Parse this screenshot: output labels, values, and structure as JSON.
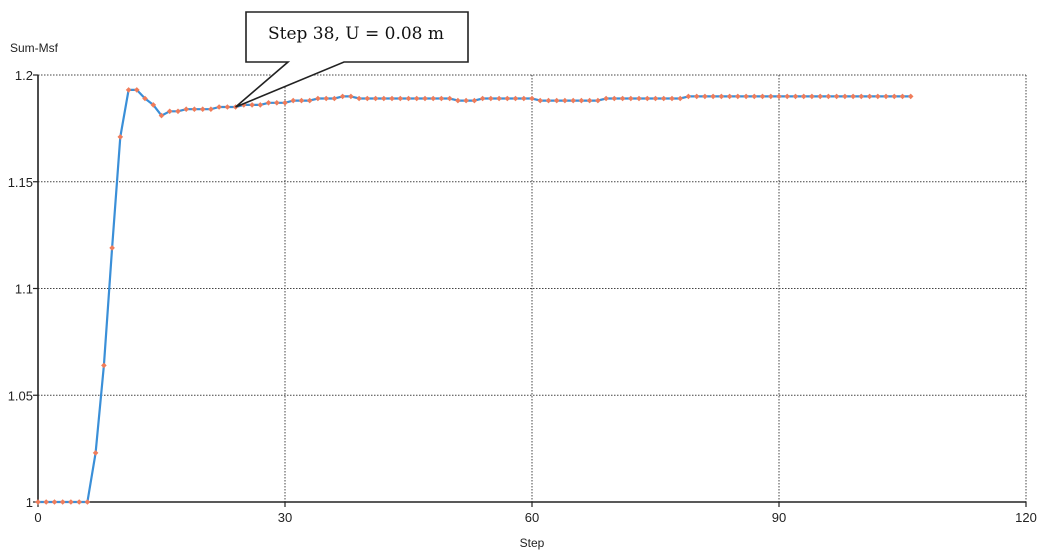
{
  "chart_data": {
    "type": "line",
    "title": "",
    "xlabel": "Step",
    "ylabel": "Sum-Msf",
    "xlim": [
      0,
      120
    ],
    "ylim": [
      1,
      1.2
    ],
    "x_ticks": [
      {
        "value": 0,
        "label": "0"
      },
      {
        "value": 30,
        "label": "30"
      },
      {
        "value": 60,
        "label": "60"
      },
      {
        "value": 90,
        "label": "90"
      },
      {
        "value": 120,
        "label": "120"
      }
    ],
    "y_ticks": [
      {
        "value": 1,
        "label": "1"
      },
      {
        "value": 1.05,
        "label": "1.05"
      },
      {
        "value": 1.1,
        "label": "1.1"
      },
      {
        "value": 1.15,
        "label": "1.15"
      },
      {
        "value": 1.2,
        "label": "1.2"
      }
    ],
    "grid": true,
    "line_color": "#3a8fd8",
    "marker_color": "#f07c5a",
    "series": [
      {
        "x": [
          0,
          1,
          2,
          3,
          4,
          5,
          6,
          7,
          8,
          9,
          10,
          11,
          12,
          13,
          14,
          15,
          16,
          17,
          18,
          19,
          20,
          21,
          22,
          23,
          24,
          25,
          26,
          27,
          28,
          29,
          30,
          31,
          32,
          33,
          34,
          35,
          36,
          37,
          38,
          39,
          40,
          41,
          42,
          43,
          44,
          45,
          46,
          47,
          48,
          49,
          50,
          51,
          52,
          53,
          54,
          55,
          56,
          57,
          58,
          59,
          60,
          61,
          62,
          63,
          64,
          65,
          66,
          67,
          68,
          69,
          70,
          71,
          72,
          73,
          74,
          75,
          76,
          77,
          78,
          79,
          80,
          81,
          82,
          83,
          84,
          85,
          86,
          87,
          88,
          89,
          90,
          91,
          92,
          93,
          94,
          95,
          96,
          97,
          98,
          99,
          100,
          101,
          102,
          103,
          104,
          105,
          106
        ],
        "y": [
          1.0,
          1.0,
          1.0,
          1.0,
          1.0,
          1.0,
          1.0,
          1.023,
          1.064,
          1.119,
          1.171,
          1.193,
          1.193,
          1.189,
          1.186,
          1.181,
          1.183,
          1.183,
          1.184,
          1.184,
          1.184,
          1.184,
          1.185,
          1.185,
          1.185,
          1.186,
          1.186,
          1.186,
          1.187,
          1.187,
          1.187,
          1.188,
          1.188,
          1.188,
          1.189,
          1.189,
          1.189,
          1.19,
          1.19,
          1.189,
          1.189,
          1.189,
          1.189,
          1.189,
          1.189,
          1.189,
          1.189,
          1.189,
          1.189,
          1.189,
          1.189,
          1.188,
          1.188,
          1.188,
          1.189,
          1.189,
          1.189,
          1.189,
          1.189,
          1.189,
          1.189,
          1.188,
          1.188,
          1.188,
          1.188,
          1.188,
          1.188,
          1.188,
          1.188,
          1.189,
          1.189,
          1.189,
          1.189,
          1.189,
          1.189,
          1.189,
          1.189,
          1.189,
          1.189,
          1.19,
          1.19,
          1.19,
          1.19,
          1.19,
          1.19,
          1.19,
          1.19,
          1.19,
          1.19,
          1.19,
          1.19,
          1.19,
          1.19,
          1.19,
          1.19,
          1.19,
          1.19,
          1.19,
          1.19,
          1.19,
          1.19,
          1.19,
          1.19,
          1.19,
          1.19,
          1.19,
          1.19
        ]
      }
    ],
    "annotation": {
      "text": "Step 38, U = 0.08 m",
      "x": 24,
      "y": 1.185
    }
  }
}
